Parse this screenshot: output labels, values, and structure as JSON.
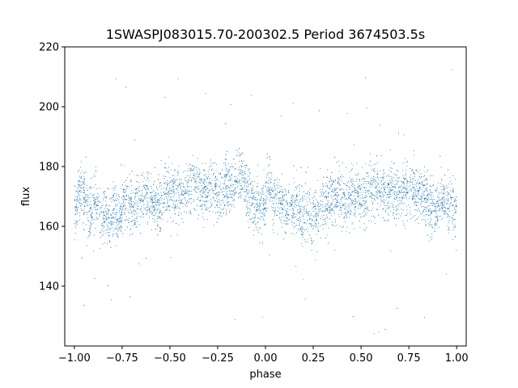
{
  "chart_data": {
    "type": "scatter",
    "title": "1SWASPJ083015.70-200302.5 Period 3674503.5s",
    "xlabel": "phase",
    "ylabel": "flux",
    "xlim": [
      -1.05,
      1.05
    ],
    "ylim": [
      120,
      220
    ],
    "xticks": [
      -1.0,
      -0.75,
      -0.5,
      -0.25,
      0.0,
      0.25,
      0.5,
      0.75,
      1.0
    ],
    "xtick_labels": [
      "−1.00",
      "−0.75",
      "−0.50",
      "−0.25",
      "0.00",
      "0.25",
      "0.50",
      "0.75",
      "1.00"
    ],
    "yticks": [
      140,
      160,
      180,
      200,
      220
    ],
    "ytick_labels": [
      "140",
      "160",
      "180",
      "200",
      "220"
    ],
    "grid": false,
    "legend": "none",
    "point_color": "#1f77b4",
    "series": [
      {
        "x": [
          -1.0,
          -0.99,
          -0.98,
          -0.97,
          -0.96,
          -0.95,
          -0.94,
          -0.93,
          -0.92,
          -0.91,
          -0.9,
          -0.89,
          -0.88,
          -0.87,
          -0.86,
          -0.85,
          -0.84,
          -0.83,
          -0.82,
          -0.81,
          -0.8,
          -0.79,
          -0.78,
          -0.77,
          -0.76,
          -0.75,
          -0.74,
          -0.73,
          -0.72,
          -0.71,
          -0.7,
          -0.69,
          -0.68,
          -0.67,
          -0.66,
          -0.65,
          -0.64,
          -0.63,
          -0.62,
          -0.61,
          -0.6,
          -0.59,
          -0.58,
          -0.57,
          -0.56,
          -0.55,
          -0.54,
          -0.53,
          -0.52,
          -0.51,
          -0.5,
          -0.49,
          -0.48,
          -0.47,
          -0.46,
          -0.45,
          -0.44,
          -0.43,
          -0.42,
          -0.41,
          -0.4,
          -0.39,
          -0.38,
          -0.37,
          -0.36,
          -0.35,
          -0.34,
          -0.33,
          -0.32,
          -0.31,
          -0.3,
          -0.29,
          -0.28,
          -0.27,
          -0.26,
          -0.25,
          -0.24,
          -0.23,
          -0.22,
          -0.21,
          -0.2,
          -0.19,
          -0.18,
          -0.17,
          -0.16,
          -0.15,
          -0.14,
          -0.13,
          -0.12,
          -0.11,
          -0.1,
          -0.09,
          -0.08,
          -0.07,
          -0.06,
          -0.05,
          -0.04,
          -0.03,
          -0.02,
          -0.01,
          0.0,
          0.01,
          0.02,
          0.03,
          0.04,
          0.05,
          0.06,
          0.07,
          0.08,
          0.09,
          0.1,
          0.11,
          0.12,
          0.13,
          0.14,
          0.15,
          0.16,
          0.17,
          0.18,
          0.19,
          0.2,
          0.21,
          0.22,
          0.23,
          0.24,
          0.25,
          0.26,
          0.27,
          0.28,
          0.29,
          0.3,
          0.31,
          0.32,
          0.33,
          0.34,
          0.35,
          0.36,
          0.37,
          0.38,
          0.39,
          0.4,
          0.41,
          0.42,
          0.43,
          0.44,
          0.45,
          0.46,
          0.47,
          0.48,
          0.49,
          0.5,
          0.51,
          0.52,
          0.53,
          0.54,
          0.55,
          0.56,
          0.57,
          0.58,
          0.59,
          0.6,
          0.61,
          0.62,
          0.63,
          0.64,
          0.65,
          0.66,
          0.67,
          0.68,
          0.69,
          0.7,
          0.71,
          0.72,
          0.73,
          0.74,
          0.75,
          0.76,
          0.77,
          0.78,
          0.79,
          0.8,
          0.81,
          0.82,
          0.83,
          0.84,
          0.85,
          0.86,
          0.87,
          0.88,
          0.89,
          0.9,
          0.91,
          0.92,
          0.93,
          0.94,
          0.95,
          0.96,
          0.97,
          0.98,
          0.99,
          1.0
        ],
        "y_center": [
          166,
          165,
          170,
          172,
          171,
          169,
          170,
          168,
          164,
          166,
          168,
          170,
          167,
          165,
          163,
          162,
          164,
          163,
          161,
          160,
          164,
          166,
          163,
          162,
          165,
          166,
          168,
          168,
          168,
          167,
          168,
          166,
          166,
          167,
          169,
          170,
          171,
          170,
          169,
          170,
          170,
          168,
          168,
          168,
          167,
          167,
          168,
          170,
          172,
          171,
          170,
          170,
          171,
          171,
          172,
          171,
          170,
          170,
          170,
          171,
          172,
          174,
          176,
          175,
          174,
          173,
          172,
          172,
          172,
          171,
          170,
          172,
          172,
          172,
          171,
          170,
          170,
          170,
          172,
          173,
          174,
          173,
          172,
          172,
          173,
          175,
          176,
          177,
          176,
          174,
          172,
          171,
          170,
          168,
          167,
          167,
          166,
          165,
          165,
          167,
          170,
          173,
          174,
          172,
          170,
          168,
          170,
          170,
          167,
          166,
          164,
          165,
          166,
          166,
          166,
          166,
          168,
          167,
          165,
          162,
          164,
          166,
          164,
          163,
          162,
          163,
          164,
          164,
          165,
          167,
          168,
          167,
          168,
          168,
          170,
          170,
          170,
          171,
          171,
          171,
          170,
          168,
          168,
          168,
          170,
          171,
          170,
          170,
          171,
          171,
          170,
          170,
          170,
          171,
          172,
          173,
          173,
          172,
          172,
          173,
          172,
          172,
          171,
          170,
          170,
          171,
          172,
          172,
          172,
          171,
          170,
          170,
          170,
          171,
          172,
          173,
          173,
          172,
          172,
          172,
          171,
          170,
          170,
          169,
          168,
          167,
          166,
          166,
          167,
          166,
          166,
          168,
          169,
          169,
          168,
          167,
          166,
          166,
          167,
          166,
          166
        ],
        "y_spread": 10,
        "sparse_outliers_range": [
          123,
          216
        ]
      }
    ]
  }
}
